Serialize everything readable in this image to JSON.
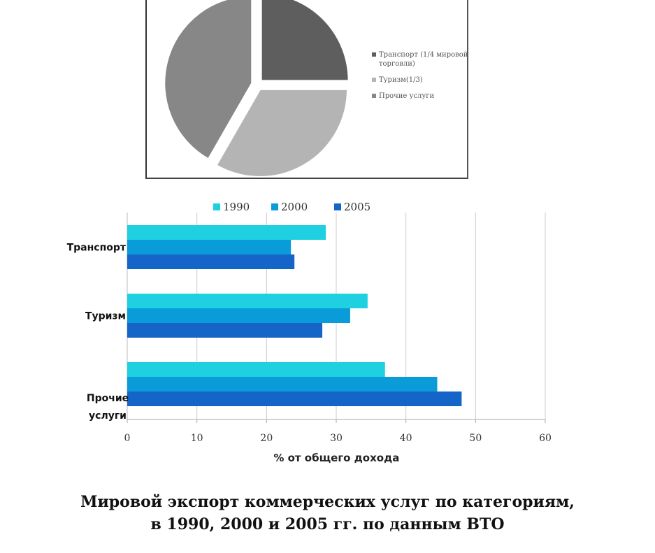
{
  "chart_data": [
    {
      "type": "pie",
      "slices": [
        {
          "label": "Транспорт (1/4 мировой торговли)",
          "value": 25,
          "color": "#5e5e5e"
        },
        {
          "label": "Туризм(1/3)",
          "value": 33.3,
          "color": "#b4b4b4"
        },
        {
          "label": "Прочие услуги",
          "value": 41.7,
          "color": "#878787"
        }
      ]
    },
    {
      "type": "bar",
      "orientation": "horizontal",
      "categories": [
        "Транспорт",
        "Туризм",
        "Прочие услуги"
      ],
      "series": [
        {
          "name": "1990",
          "values": [
            28.5,
            34.5,
            37
          ],
          "color": "#1fd0e0"
        },
        {
          "name": "2000",
          "values": [
            23.5,
            32,
            44.5
          ],
          "color": "#0a9cd8"
        },
        {
          "name": "2005",
          "values": [
            24,
            28,
            48
          ],
          "color": "#1565c8"
        }
      ],
      "xlabel": "% от общего дохода",
      "xlim": [
        0,
        60
      ],
      "xticks": [
        "0",
        "10",
        "20",
        "30",
        "40",
        "50",
        "60"
      ],
      "grid": true,
      "legend_position": "top"
    }
  ],
  "caption": {
    "line1": "Мировой экспорт коммерческих услуг по категориям,",
    "line2": "в 1990, 2000 и 2005 гг. по данным ВТО"
  }
}
